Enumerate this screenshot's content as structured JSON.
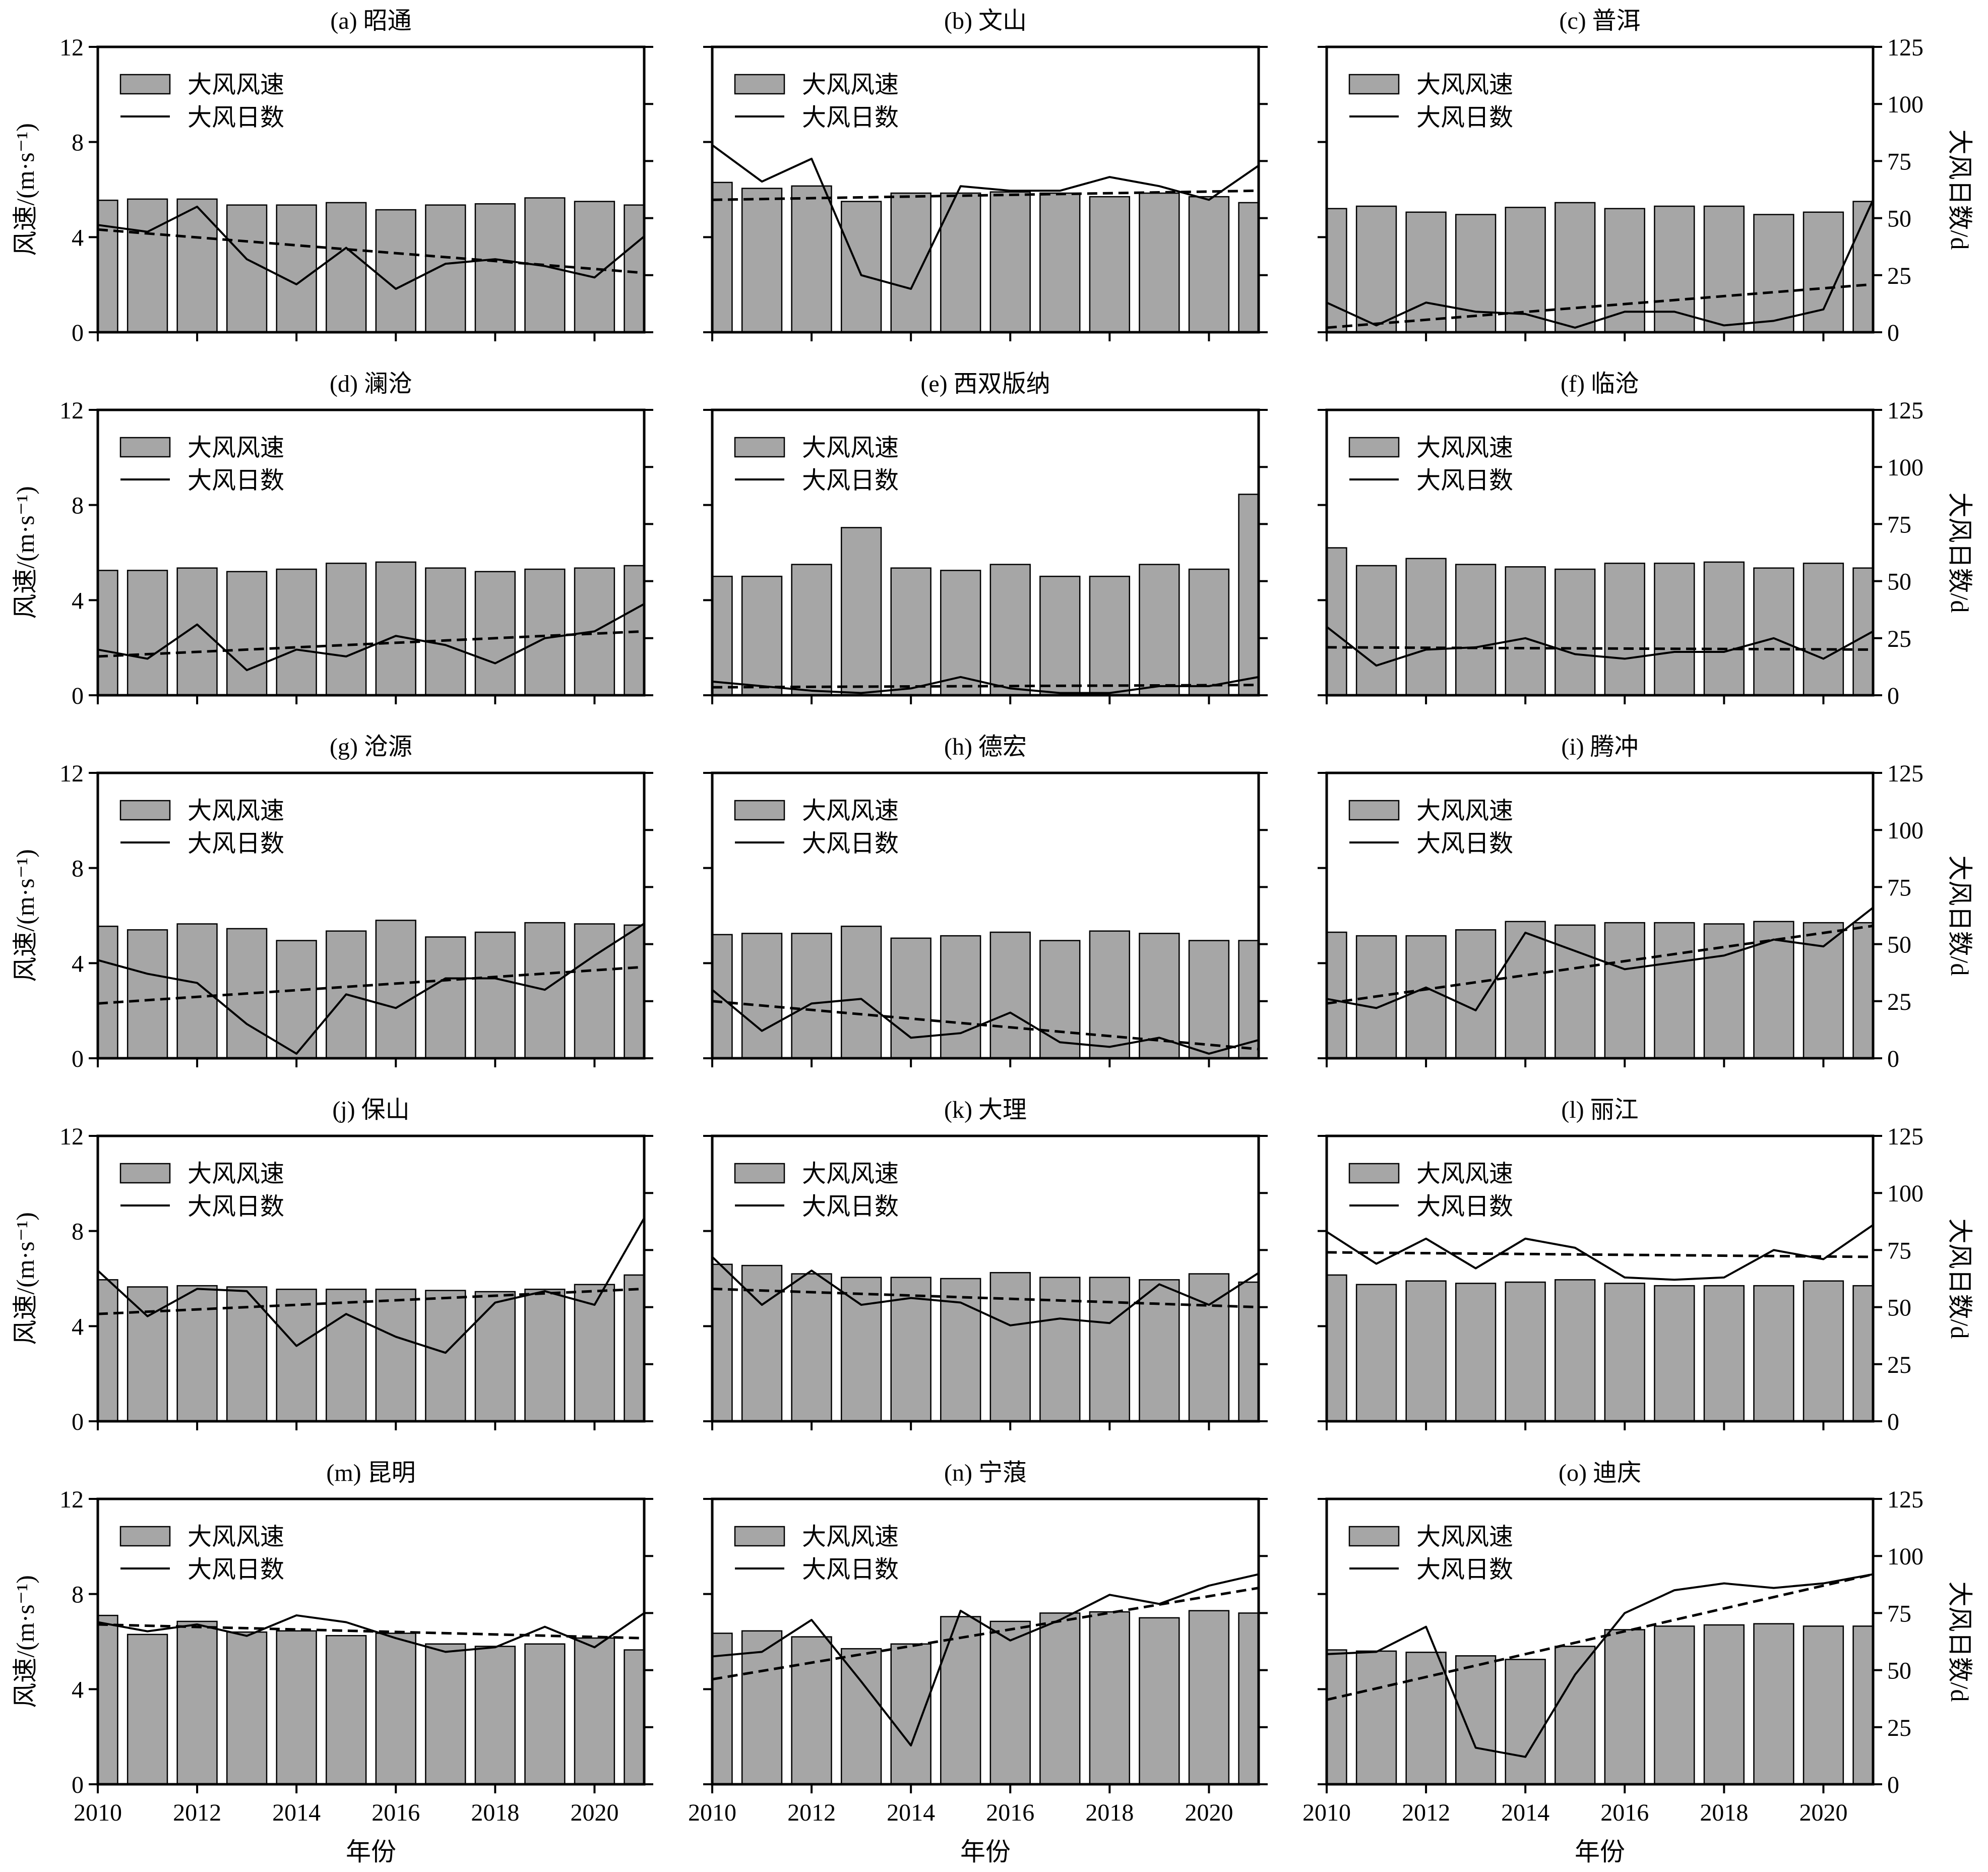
{
  "chart_data": {
    "type": "bar",
    "grid": false,
    "legend_placement": "top-left",
    "x": [
      2010,
      2011,
      2012,
      2013,
      2014,
      2015,
      2016,
      2017,
      2018,
      2019,
      2020,
      2021
    ],
    "xlim": [
      2010,
      2021
    ],
    "xticks": [
      2010,
      2012,
      2014,
      2016,
      2018,
      2020
    ],
    "xlabel": "年份",
    "ylabel_left": "风速/(m·s⁻¹)",
    "ylim_left": [
      0,
      12
    ],
    "yticks_left": [
      0,
      4,
      8,
      12
    ],
    "ylabel_right": "大风日数/d",
    "ylim_right": [
      0,
      125
    ],
    "yticks_right": [
      0,
      25,
      50,
      75,
      100,
      125
    ],
    "colors": {
      "bar_fill": "#a6a6a6",
      "bar_edge": "#000000",
      "line": "#000000",
      "trend": "#000000"
    },
    "panels": [
      {
        "title": "(a) 昭通",
        "series": [
          {
            "name": "大风风速",
            "type": "bar",
            "axis": "left",
            "values": [
              5.55,
              5.6,
              5.6,
              5.35,
              5.35,
              5.45,
              5.15,
              5.35,
              5.4,
              5.65,
              5.5,
              5.35
            ]
          },
          {
            "name": "大风日数",
            "type": "line",
            "axis": "right",
            "values": [
              47,
              44,
              55,
              32,
              21,
              37,
              19,
              30,
              32,
              29,
              24,
              42
            ]
          }
        ],
        "trend": {
          "axis": "right",
          "x": [
            2010,
            2021
          ],
          "values": [
            45,
            26
          ]
        }
      },
      {
        "title": "(b) 文山",
        "series": [
          {
            "name": "大风风速",
            "type": "bar",
            "axis": "left",
            "values": [
              6.3,
              6.05,
              6.15,
              5.5,
              5.85,
              5.85,
              5.9,
              5.85,
              5.7,
              5.85,
              5.7,
              5.45
            ]
          },
          {
            "name": "大风日数",
            "type": "line",
            "axis": "right",
            "values": [
              82,
              66,
              76,
              25,
              19,
              64,
              62,
              62,
              68,
              64,
              58,
              73
            ]
          }
        ],
        "trend": {
          "axis": "right",
          "x": [
            2010,
            2021
          ],
          "values": [
            58,
            62
          ]
        }
      },
      {
        "title": "(c) 普洱",
        "series": [
          {
            "name": "大风风速",
            "type": "bar",
            "axis": "left",
            "values": [
              5.2,
              5.3,
              5.05,
              4.95,
              5.25,
              5.45,
              5.2,
              5.3,
              5.3,
              4.95,
              5.05,
              5.5
            ]
          },
          {
            "name": "大风日数",
            "type": "line",
            "axis": "right",
            "values": [
              13,
              3,
              13,
              9,
              8,
              2,
              9,
              9,
              3,
              5,
              10,
              58
            ]
          }
        ],
        "trend": {
          "axis": "right",
          "x": [
            2010,
            2021
          ],
          "values": [
            2,
            21
          ]
        }
      },
      {
        "title": "(d) 澜沧",
        "series": [
          {
            "name": "大风风速",
            "type": "bar",
            "axis": "left",
            "values": [
              5.25,
              5.25,
              5.35,
              5.2,
              5.3,
              5.55,
              5.6,
              5.35,
              5.2,
              5.3,
              5.35,
              5.45
            ]
          },
          {
            "name": "大风日数",
            "type": "line",
            "axis": "right",
            "values": [
              20,
              16,
              31,
              11,
              20,
              17,
              26,
              22,
              14,
              25,
              28,
              40
            ]
          }
        ],
        "trend": {
          "axis": "right",
          "x": [
            2010,
            2021
          ],
          "values": [
            17,
            28
          ]
        }
      },
      {
        "title": "(e) 西双版纳",
        "series": [
          {
            "name": "大风风速",
            "type": "bar",
            "axis": "left",
            "values": [
              5.0,
              5.0,
              5.5,
              7.05,
              5.35,
              5.25,
              5.5,
              5.0,
              5.0,
              5.5,
              5.3,
              8.45
            ]
          },
          {
            "name": "大风日数",
            "type": "line",
            "axis": "right",
            "values": [
              6,
              4,
              2,
              1,
              3,
              8,
              3,
              1,
              1,
              4,
              4,
              8
            ]
          }
        ],
        "trend": {
          "axis": "right",
          "x": [
            2010,
            2021
          ],
          "values": [
            3.5,
            4.5
          ]
        }
      },
      {
        "title": "(f) 临沧",
        "series": [
          {
            "name": "大风风速",
            "type": "bar",
            "axis": "left",
            "values": [
              6.2,
              5.45,
              5.75,
              5.5,
              5.4,
              5.3,
              5.55,
              5.55,
              5.6,
              5.35,
              5.55,
              5.35
            ]
          },
          {
            "name": "大风日数",
            "type": "line",
            "axis": "right",
            "values": [
              30,
              13,
              20,
              21,
              25,
              18,
              16,
              19,
              19,
              25,
              16,
              28
            ]
          }
        ],
        "trend": {
          "axis": "right",
          "x": [
            2010,
            2021
          ],
          "values": [
            21,
            20
          ]
        }
      },
      {
        "title": "(g) 沧源",
        "series": [
          {
            "name": "大风风速",
            "type": "bar",
            "axis": "left",
            "values": [
              5.55,
              5.4,
              5.65,
              5.45,
              4.95,
              5.35,
              5.8,
              5.1,
              5.3,
              5.7,
              5.65,
              5.6
            ]
          },
          {
            "name": "大风日数",
            "type": "line",
            "axis": "right",
            "values": [
              43,
              37,
              33,
              15,
              2,
              28,
              22,
              35,
              35,
              30,
              45,
              59
            ]
          }
        ],
        "trend": {
          "axis": "right",
          "x": [
            2010,
            2021
          ],
          "values": [
            24,
            40
          ]
        }
      },
      {
        "title": "(h) 德宏",
        "series": [
          {
            "name": "大风风速",
            "type": "bar",
            "axis": "left",
            "values": [
              5.2,
              5.25,
              5.25,
              5.55,
              5.05,
              5.15,
              5.3,
              4.95,
              5.35,
              5.25,
              4.95,
              4.95
            ]
          },
          {
            "name": "大风日数",
            "type": "line",
            "axis": "right",
            "values": [
              30,
              12,
              24,
              26,
              9,
              11,
              20,
              7,
              5,
              9,
              2,
              8
            ]
          }
        ],
        "trend": {
          "axis": "right",
          "x": [
            2010,
            2021
          ],
          "values": [
            25,
            4
          ]
        }
      },
      {
        "title": "(i) 腾冲",
        "series": [
          {
            "name": "大风风速",
            "type": "bar",
            "axis": "left",
            "values": [
              5.3,
              5.15,
              5.15,
              5.4,
              5.75,
              5.6,
              5.7,
              5.7,
              5.65,
              5.75,
              5.7,
              5.7
            ]
          },
          {
            "name": "大风日数",
            "type": "line",
            "axis": "right",
            "values": [
              26,
              22,
              31,
              21,
              55,
              47,
              39,
              42,
              45,
              52,
              49,
              66
            ]
          }
        ],
        "trend": {
          "axis": "right",
          "x": [
            2010,
            2021
          ],
          "values": [
            24,
            58
          ]
        }
      },
      {
        "title": "(j) 保山",
        "series": [
          {
            "name": "大风风速",
            "type": "bar",
            "axis": "left",
            "values": [
              5.95,
              5.65,
              5.7,
              5.65,
              5.55,
              5.55,
              5.55,
              5.5,
              5.45,
              5.55,
              5.75,
              6.15
            ]
          },
          {
            "name": "大风日数",
            "type": "line",
            "axis": "right",
            "values": [
              66,
              46,
              58,
              57,
              33,
              47,
              37,
              30,
              52,
              57,
              51,
              89
            ]
          }
        ],
        "trend": {
          "axis": "right",
          "x": [
            2010,
            2021
          ],
          "values": [
            47,
            58
          ]
        }
      },
      {
        "title": "(k) 大理",
        "series": [
          {
            "name": "大风风速",
            "type": "bar",
            "axis": "left",
            "values": [
              6.6,
              6.55,
              6.2,
              6.05,
              6.05,
              6.0,
              6.25,
              6.05,
              6.05,
              5.95,
              6.2,
              5.85
            ]
          },
          {
            "name": "大风日数",
            "type": "line",
            "axis": "right",
            "values": [
              72,
              51,
              66,
              51,
              54,
              52,
              42,
              45,
              43,
              60,
              51,
              65
            ]
          }
        ],
        "trend": {
          "axis": "right",
          "x": [
            2010,
            2021
          ],
          "values": [
            58,
            50
          ]
        }
      },
      {
        "title": "(l) 丽江",
        "series": [
          {
            "name": "大风风速",
            "type": "bar",
            "axis": "left",
            "values": [
              6.15,
              5.75,
              5.9,
              5.8,
              5.85,
              5.95,
              5.8,
              5.7,
              5.7,
              5.7,
              5.9,
              5.7
            ]
          },
          {
            "name": "大风日数",
            "type": "line",
            "axis": "right",
            "values": [
              83,
              69,
              80,
              67,
              80,
              76,
              63,
              62,
              63,
              75,
              71,
              86
            ]
          }
        ],
        "trend": {
          "axis": "right",
          "x": [
            2010,
            2021
          ],
          "values": [
            74,
            72
          ]
        }
      },
      {
        "title": "(m) 昆明",
        "series": [
          {
            "name": "大风风速",
            "type": "bar",
            "axis": "left",
            "values": [
              7.1,
              6.3,
              6.85,
              6.4,
              6.45,
              6.25,
              6.35,
              5.9,
              5.8,
              5.9,
              6.15,
              5.65
            ]
          },
          {
            "name": "大风日数",
            "type": "line",
            "axis": "right",
            "values": [
              71,
              67,
              70,
              65,
              74,
              71,
              64,
              58,
              60,
              69,
              60,
              75
            ]
          }
        ],
        "trend": {
          "axis": "right",
          "x": [
            2010,
            2021
          ],
          "values": [
            70,
            64
          ]
        }
      },
      {
        "title": "(n) 宁蒗",
        "series": [
          {
            "name": "大风风速",
            "type": "bar",
            "axis": "left",
            "values": [
              6.35,
              6.45,
              6.2,
              5.7,
              5.9,
              7.05,
              6.85,
              7.2,
              7.25,
              7.0,
              7.3,
              7.2
            ]
          },
          {
            "name": "大风日数",
            "type": "line",
            "axis": "right",
            "values": [
              56,
              58,
              72,
              45,
              17,
              76,
              63,
              72,
              83,
              79,
              87,
              92
            ]
          }
        ],
        "trend": {
          "axis": "right",
          "x": [
            2010,
            2021
          ],
          "values": [
            46,
            86
          ]
        }
      },
      {
        "title": "(o) 迪庆",
        "series": [
          {
            "name": "大风风速",
            "type": "bar",
            "axis": "left",
            "values": [
              5.65,
              5.6,
              5.55,
              5.4,
              5.25,
              5.8,
              6.5,
              6.65,
              6.7,
              6.75,
              6.65,
              6.65
            ]
          },
          {
            "name": "大风日数",
            "type": "line",
            "axis": "right",
            "values": [
              57,
              58,
              69,
              16,
              12,
              48,
              75,
              85,
              88,
              86,
              88,
              92
            ]
          }
        ],
        "trend": {
          "axis": "right",
          "x": [
            2010,
            2021
          ],
          "values": [
            37,
            92
          ]
        }
      }
    ]
  }
}
